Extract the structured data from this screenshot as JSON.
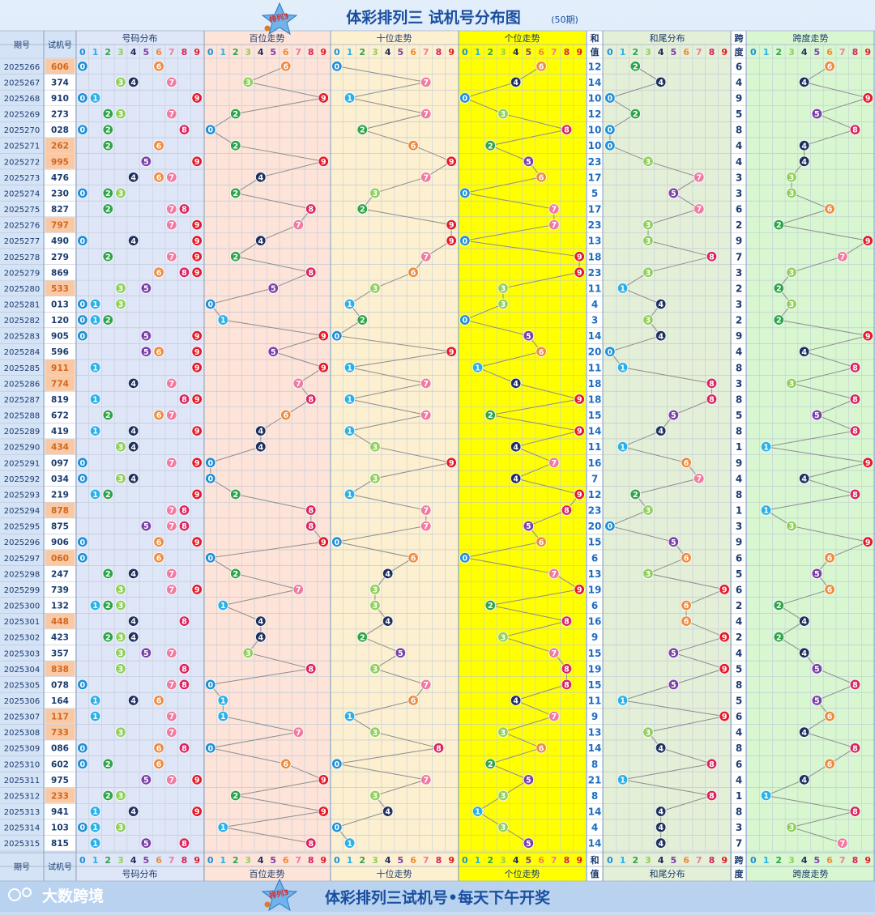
{
  "header": {
    "badge": "排列3",
    "title": "体彩排列三 试机号分布图",
    "periods": "(50期)"
  },
  "footer": {
    "badge": "排列3",
    "slogan": "体彩排列三试机号•每天下午开奖",
    "brand": "大数跨境"
  },
  "columns": {
    "period": "期号",
    "trial": "试机号",
    "groups": [
      "号码分布",
      "百位走势",
      "十位走势",
      "个位走势",
      "和尾分布",
      "跨度走势"
    ],
    "sum_top": "和",
    "sum_bottom": "值",
    "span_top": "跨",
    "span_bottom": "度",
    "digits": [
      "0",
      "1",
      "2",
      "3",
      "4",
      "5",
      "6",
      "7",
      "8",
      "9"
    ]
  },
  "colors": {
    "d0": "#1f8fd6",
    "d1": "#2ab0e8",
    "d2": "#2fa34a",
    "d3": "#8fcf5a",
    "d4": "#1c2f5e",
    "d5": "#7a3fa8",
    "d6": "#ef8a3c",
    "d7": "#f07aa0",
    "d8": "#d8245f",
    "d9": "#e21b2a",
    "bg_distribution": "#dfe6f7",
    "bg_hundreds": "#fde3d8",
    "bg_tens": "#fdf0d0",
    "bg_units": "#ffff00",
    "bg_sum_tail": "#e4efd8",
    "bg_span": "#d8f7d0",
    "repeat_highlight": "#f8c9a4",
    "accent": "#1b6cc0"
  },
  "chart_data": {
    "type": "table",
    "periods": [
      "2025266",
      "2025267",
      "2025268",
      "2025269",
      "2025270",
      "2025271",
      "2025272",
      "2025273",
      "2025274",
      "2025275",
      "2025276",
      "2025277",
      "2025278",
      "2025279",
      "2025280",
      "2025281",
      "2025282",
      "2025283",
      "2025284",
      "2025285",
      "2025286",
      "2025287",
      "2025288",
      "2025289",
      "2025290",
      "2025291",
      "2025292",
      "2025293",
      "2025294",
      "2025295",
      "2025296",
      "2025297",
      "2025298",
      "2025299",
      "2025300",
      "2025301",
      "2025302",
      "2025303",
      "2025304",
      "2025305",
      "2025306",
      "2025307",
      "2025308",
      "2025309",
      "2025310",
      "2025311",
      "2025312",
      "2025313",
      "2025314",
      "2025315"
    ],
    "trial_numbers": [
      "606",
      "374",
      "910",
      "273",
      "028",
      "262",
      "995",
      "476",
      "230",
      "827",
      "797",
      "490",
      "279",
      "869",
      "533",
      "013",
      "120",
      "905",
      "596",
      "911",
      "774",
      "819",
      "672",
      "419",
      "434",
      "097",
      "034",
      "219",
      "878",
      "875",
      "906",
      "060",
      "247",
      "739",
      "132",
      "448",
      "423",
      "357",
      "838",
      "078",
      "164",
      "117",
      "733",
      "086",
      "602",
      "975",
      "233",
      "941",
      "103",
      "815"
    ],
    "sums": [
      12,
      14,
      10,
      12,
      10,
      10,
      23,
      17,
      5,
      17,
      23,
      13,
      18,
      23,
      11,
      4,
      3,
      14,
      20,
      11,
      18,
      18,
      15,
      14,
      11,
      16,
      7,
      12,
      23,
      20,
      15,
      6,
      13,
      19,
      6,
      16,
      9,
      15,
      19,
      15,
      11,
      9,
      13,
      14,
      8,
      21,
      8,
      14,
      4,
      14
    ],
    "spans": [
      6,
      4,
      9,
      5,
      8,
      4,
      4,
      3,
      3,
      6,
      2,
      9,
      7,
      3,
      2,
      3,
      2,
      9,
      4,
      8,
      3,
      8,
      5,
      8,
      1,
      9,
      4,
      8,
      1,
      3,
      9,
      6,
      5,
      6,
      2,
      4,
      2,
      4,
      5,
      8,
      5,
      6,
      4,
      8,
      6,
      4,
      1,
      8,
      3,
      7
    ]
  }
}
